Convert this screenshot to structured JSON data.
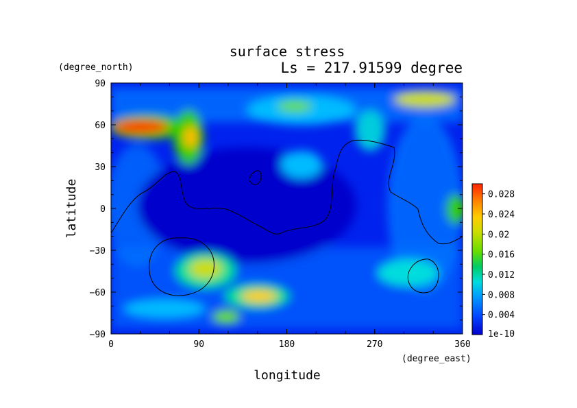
{
  "chart_data": {
    "type": "heatmap",
    "title": "surface stress",
    "subtitle": "Ls = 217.91599 degree",
    "xlabel": "longitude",
    "ylabel": "latitude",
    "x_unit": "(degree_east)",
    "y_unit": "(degree_north)",
    "xlim": [
      0,
      360
    ],
    "ylim": [
      -90,
      90
    ],
    "x_ticks": [
      "0",
      "90",
      "180",
      "270",
      "360"
    ],
    "y_ticks": [
      "90",
      "60",
      "30",
      "0",
      "−30",
      "−60",
      "−90"
    ],
    "colorbar": {
      "min_label": "1e-10",
      "max": 0.03,
      "tick_values": [
        0.004,
        0.008,
        0.012,
        0.016,
        0.02,
        0.024,
        0.028
      ],
      "tick_labels": [
        "0.004",
        "0.008",
        "0.012",
        "0.016",
        "0.02",
        "0.024",
        "0.028"
      ],
      "colors": [
        "#0000cc",
        "#0022ee",
        "#0055ff",
        "#0088ff",
        "#00bbff",
        "#00dddd",
        "#00ddaa",
        "#00cc66",
        "#33cc00",
        "#88dd00",
        "#ccdd00",
        "#ffcc00",
        "#ff9900",
        "#ff6600",
        "#ff2200"
      ]
    },
    "features": [
      {
        "lon": 25,
        "lat": 60,
        "value": 0.03
      },
      {
        "lon": 78,
        "lat": 50,
        "value": 0.018
      },
      {
        "lon": 85,
        "lat": -42,
        "value": 0.016
      },
      {
        "lon": 150,
        "lat": -62,
        "value": 0.02
      },
      {
        "lon": 115,
        "lat": -78,
        "value": 0.014
      },
      {
        "lon": 185,
        "lat": 75,
        "value": 0.016
      },
      {
        "lon": 330,
        "lat": 80,
        "value": 0.018
      },
      {
        "lon": 355,
        "lat": 0,
        "value": 0.014
      },
      {
        "lon": 318,
        "lat": -46,
        "value": 0.012
      },
      {
        "lon": 255,
        "lat": 58,
        "value": 0.012
      }
    ]
  }
}
